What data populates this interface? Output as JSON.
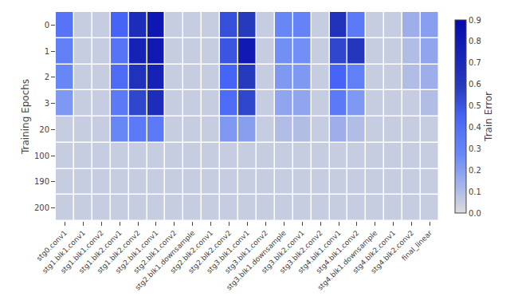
{
  "chart_data": {
    "type": "heatmap",
    "categories": [
      "stg0.conv1",
      "stg1.blk1.conv1",
      "stg1.blk1.conv2",
      "stg1.blk2.conv1",
      "stg1.blk2.conv2",
      "stg2.blk1.conv1",
      "stg2.blk1.conv2",
      "stg2.blk1.downsample",
      "stg2.blk2.conv1",
      "stg2.blk2.conv2",
      "stg3.blk1.conv1",
      "stg3.blk1.conv2",
      "stg3.blk1.downsample",
      "stg3.blk2.conv1",
      "stg3.blk2.conv2",
      "stg4.blk1.conv1",
      "stg4.blk1.conv2",
      "stg4.blk1.downsample",
      "stg4.blk2.conv1",
      "stg4.blk2.conv2",
      "final_linear"
    ],
    "rows": [
      "0",
      "1",
      "2",
      "3",
      "20",
      "100",
      "190",
      "200"
    ],
    "cells": [
      [
        0.38,
        0.05,
        0.05,
        0.45,
        0.68,
        0.82,
        0.05,
        0.05,
        0.05,
        0.52,
        0.6,
        0.05,
        0.28,
        0.3,
        0.05,
        0.65,
        0.35,
        0.05,
        0.05,
        0.15,
        0.2
      ],
      [
        0.32,
        0.05,
        0.05,
        0.38,
        0.75,
        0.8,
        0.05,
        0.05,
        0.05,
        0.5,
        0.8,
        0.05,
        0.25,
        0.25,
        0.05,
        0.55,
        0.62,
        0.05,
        0.05,
        0.1,
        0.18
      ],
      [
        0.28,
        0.05,
        0.05,
        0.42,
        0.65,
        0.75,
        0.05,
        0.05,
        0.05,
        0.45,
        0.6,
        0.05,
        0.22,
        0.22,
        0.05,
        0.45,
        0.32,
        0.05,
        0.05,
        0.1,
        0.15
      ],
      [
        0.22,
        0.05,
        0.05,
        0.35,
        0.55,
        0.68,
        0.05,
        0.05,
        0.05,
        0.42,
        0.55,
        0.05,
        0.18,
        0.18,
        0.05,
        0.35,
        0.22,
        0.05,
        0.05,
        0.05,
        0.1
      ],
      [
        0.05,
        0.05,
        0.05,
        0.28,
        0.35,
        0.35,
        0.05,
        0.05,
        0.05,
        0.22,
        0.2,
        0.05,
        0.1,
        0.1,
        0.05,
        0.15,
        0.1,
        0.05,
        0.05,
        0.05,
        0.05
      ],
      [
        0.05,
        0.05,
        0.05,
        0.05,
        0.05,
        0.05,
        0.05,
        0.05,
        0.05,
        0.05,
        0.05,
        0.05,
        0.05,
        0.05,
        0.05,
        0.05,
        0.05,
        0.05,
        0.05,
        0.05,
        0.05
      ],
      [
        0.05,
        0.05,
        0.05,
        0.05,
        0.05,
        0.05,
        0.05,
        0.05,
        0.05,
        0.05,
        0.05,
        0.05,
        0.05,
        0.05,
        0.05,
        0.05,
        0.05,
        0.05,
        0.05,
        0.05,
        0.05
      ],
      [
        0.05,
        0.05,
        0.05,
        0.05,
        0.05,
        0.05,
        0.05,
        0.05,
        0.05,
        0.05,
        0.05,
        0.05,
        0.05,
        0.05,
        0.05,
        0.05,
        0.05,
        0.05,
        0.05,
        0.05,
        0.05
      ]
    ],
    "color": "Blues",
    "ylabel": "Training Epochs",
    "colorbar_label": "Train Error",
    "colorbar_range": [
      0.0,
      0.9
    ],
    "colorbar_ticks": [
      {
        "value": 0.0,
        "label": "0.0"
      },
      0.1,
      0.2,
      0.3,
      0.4,
      0.5,
      0.6,
      0.7,
      0.8,
      0.9
    ],
    "grid": false
  }
}
